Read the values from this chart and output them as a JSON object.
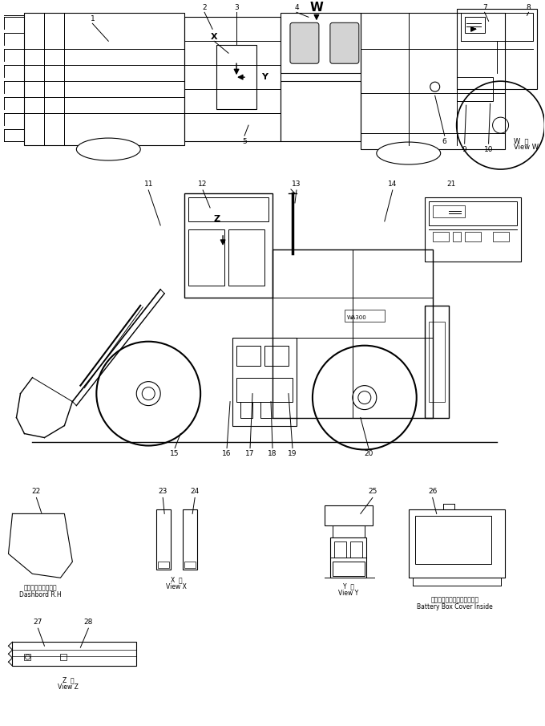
{
  "title": "",
  "bg_color": "#ffffff",
  "line_color": "#000000",
  "fig_width": 6.8,
  "fig_height": 9.05,
  "dpi": 100,
  "annotations": {
    "top_view_numbers": [
      "1",
      "2",
      "3",
      "4",
      "5",
      "6",
      "7",
      "8",
      "9",
      "10"
    ],
    "side_view_numbers": [
      "11",
      "12",
      "13",
      "14",
      "15",
      "16",
      "17",
      "18",
      "19",
      "20",
      "21"
    ],
    "detail_numbers": [
      "22",
      "23",
      "24",
      "25",
      "26",
      "27",
      "28"
    ],
    "W_label": "W",
    "X_label": "X",
    "Y_label": "Y",
    "Z_label": "Z"
  },
  "captions": {
    "view_w_jp": "W  視",
    "view_w_en": "View W",
    "view_x_jp": "X  視",
    "view_x_en": "View X",
    "view_y_jp": "Y  視",
    "view_y_en": "View Y",
    "view_z_jp": "Z  視",
    "view_z_en": "View Z",
    "detail22_jp": "ダッシュボード右側",
    "detail22_en": "Dashbord R.H",
    "detail26_jp": "バッテリボックスカバー内側",
    "detail26_en": "Battery Box Cover Inside"
  }
}
